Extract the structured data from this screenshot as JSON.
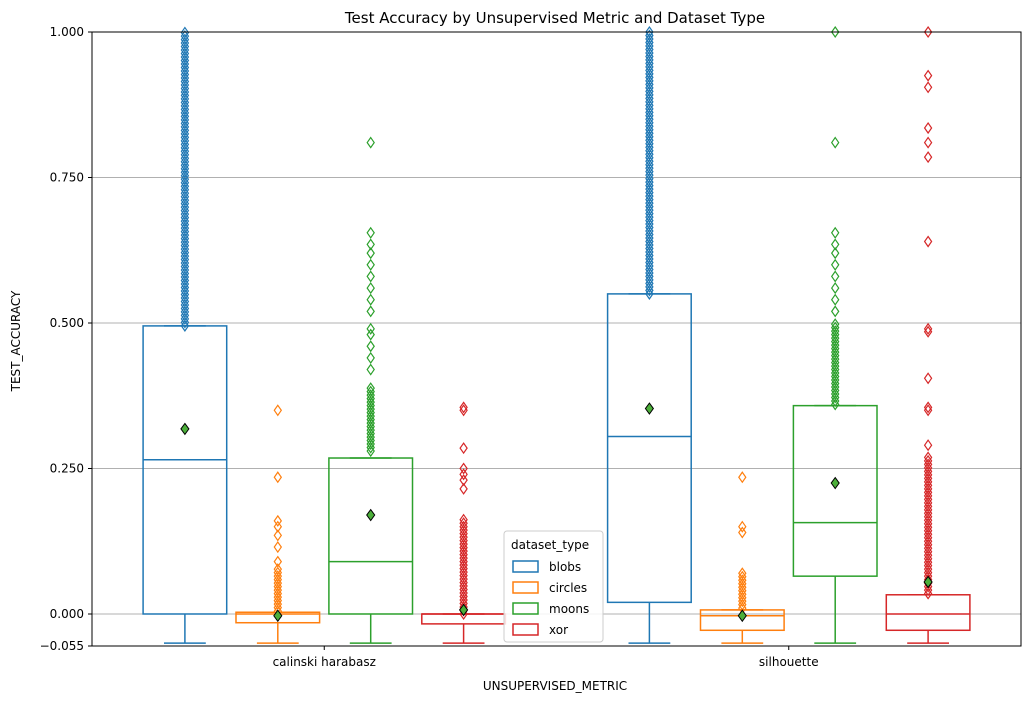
{
  "chart_data": {
    "type": "box",
    "title": "Test Accuracy by Unsupervised Metric and Dataset Type",
    "xlabel": "UNSUPERVISED_METRIC",
    "ylabel": "TEST_ACCURACY",
    "categories": [
      "calinski harabasz",
      "silhouette"
    ],
    "ylim": [
      -0.055,
      1.0
    ],
    "yticks": [
      -0.055,
      0.0,
      0.25,
      0.5,
      0.75,
      1.0
    ],
    "ytick_labels": [
      "−0.055",
      "0.000",
      "0.250",
      "0.500",
      "0.750",
      "1.000"
    ],
    "grid": "y",
    "legend": {
      "title": "dataset_type",
      "placement": "lower-center"
    },
    "mean_marker": {
      "shape": "diamond",
      "color": "#4caf3a"
    },
    "series": [
      {
        "name": "blobs",
        "color": "#1f77b4",
        "boxes": [
          {
            "min": -0.05,
            "q1": 0.0,
            "median": 0.265,
            "q3": 0.495,
            "whisker_high": 0.495,
            "mean": 0.318,
            "fliers": {
              "dense": [
                0.495,
                1.0
              ]
            }
          },
          {
            "min": -0.05,
            "q1": 0.02,
            "median": 0.305,
            "q3": 0.55,
            "whisker_high": 0.55,
            "mean": 0.353,
            "fliers": {
              "dense": [
                0.55,
                1.0
              ]
            }
          }
        ]
      },
      {
        "name": "circles",
        "color": "#ff7f0e",
        "boxes": [
          {
            "min": -0.05,
            "q1": -0.015,
            "median": 0.0,
            "q3": 0.003,
            "whisker_high": 0.003,
            "mean": -0.003,
            "fliers": {
              "dense": [
                0.005,
                0.08
              ],
              "points": [
                0.09,
                0.115,
                0.135,
                0.15,
                0.16,
                0.235,
                0.35
              ]
            }
          },
          {
            "min": -0.05,
            "q1": -0.028,
            "median": -0.003,
            "q3": 0.007,
            "whisker_high": 0.007,
            "mean": -0.003,
            "fliers": {
              "dense": [
                0.01,
                0.075
              ],
              "points": [
                0.14,
                0.15,
                0.235
              ]
            }
          }
        ]
      },
      {
        "name": "moons",
        "color": "#2ca02c",
        "boxes": [
          {
            "min": -0.05,
            "q1": 0.0,
            "median": 0.09,
            "q3": 0.268,
            "whisker_high": 0.268,
            "mean": 0.17,
            "fliers": {
              "dense": [
                0.28,
                0.39
              ],
              "points": [
                0.42,
                0.44,
                0.46,
                0.48,
                0.49,
                0.52,
                0.54,
                0.56,
                0.58,
                0.6,
                0.62,
                0.635,
                0.655,
                0.81
              ]
            }
          },
          {
            "min": -0.05,
            "q1": 0.065,
            "median": 0.157,
            "q3": 0.358,
            "whisker_high": 0.358,
            "mean": 0.225,
            "fliers": {
              "dense": [
                0.36,
                0.5
              ],
              "points": [
                0.52,
                0.54,
                0.56,
                0.58,
                0.6,
                0.62,
                0.635,
                0.655,
                0.81,
                1.0
              ]
            }
          }
        ]
      },
      {
        "name": "xor",
        "color": "#d62728",
        "boxes": [
          {
            "min": -0.05,
            "q1": -0.017,
            "median": 0.0,
            "q3": 0.0,
            "whisker_high": 0.0,
            "mean": 0.007,
            "fliers": {
              "dense": [
                0.0,
                0.165
              ],
              "points": [
                0.215,
                0.23,
                0.24,
                0.25,
                0.285,
                0.35,
                0.355
              ]
            }
          },
          {
            "min": -0.05,
            "q1": -0.028,
            "median": 0.0,
            "q3": 0.033,
            "whisker_high": 0.033,
            "mean": 0.055,
            "fliers": {
              "dense": [
                0.035,
                0.27
              ],
              "points": [
                0.29,
                0.35,
                0.355,
                0.405,
                0.485,
                0.49,
                0.64,
                0.785,
                0.81,
                0.835,
                0.905,
                0.925,
                1.0
              ]
            }
          }
        ]
      }
    ]
  }
}
